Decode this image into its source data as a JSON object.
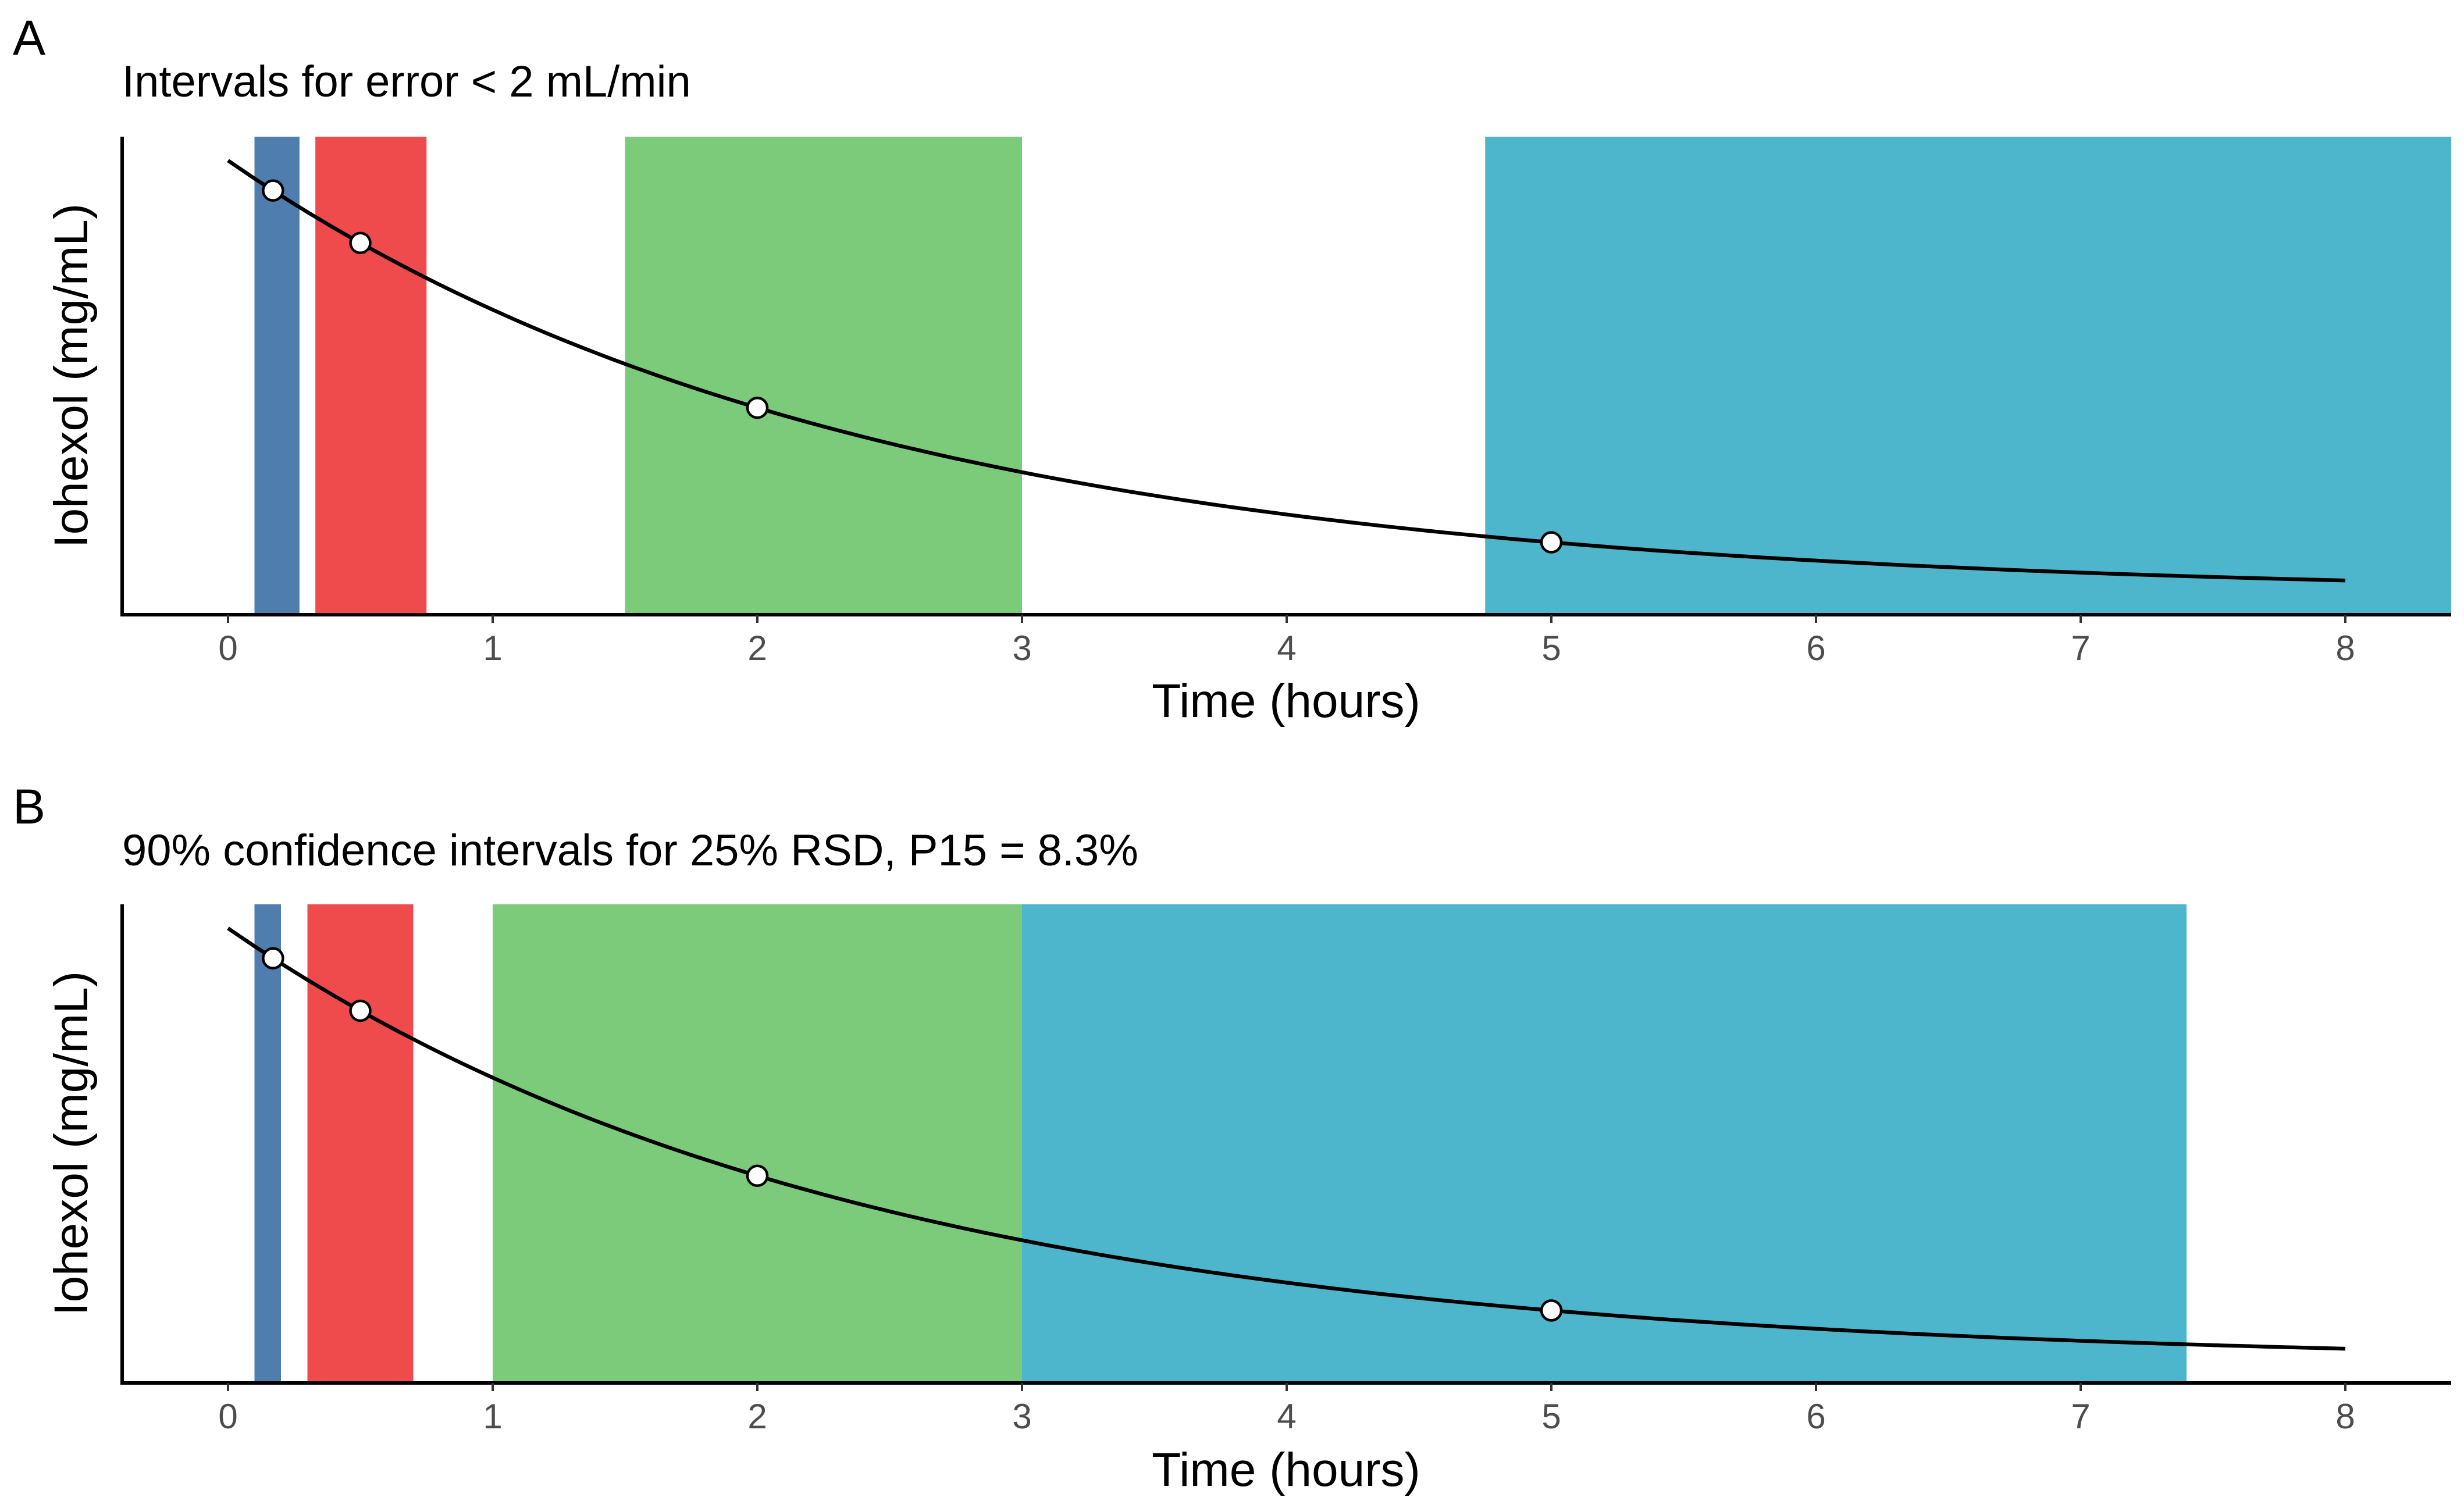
{
  "chart_data": [
    {
      "type": "area",
      "panel_label": "A",
      "title": "Intervals for error < 2 mL/min",
      "xlabel": "Time (hours)",
      "ylabel": "Iohexol (mg/mL)",
      "xlim": [
        -0.4,
        8.4
      ],
      "xticks": [
        0,
        1,
        2,
        3,
        4,
        5,
        6,
        7,
        8
      ],
      "intervals": [
        {
          "start": 0.1,
          "end": 0.27,
          "color": "#4E7DAE"
        },
        {
          "start": 0.33,
          "end": 0.75,
          "color": "#F04B4C"
        },
        {
          "start": 1.5,
          "end": 3.0,
          "color": "#7CCB7B"
        },
        {
          "start": 4.75,
          "end": 8.4,
          "color": "#4DB6CC"
        }
      ],
      "sample_times": [
        0.17,
        0.5,
        2,
        5
      ],
      "curve": {
        "x_start": 0,
        "x_end": 8,
        "line_color": "#000000",
        "point_fill": "#ffffff"
      },
      "grid": false
    },
    {
      "type": "area",
      "panel_label": "B",
      "title": "90% confidence intervals for 25% RSD, P15 = 8.3%",
      "xlabel": "Time (hours)",
      "ylabel": "Iohexol (mg/mL)",
      "xlim": [
        -0.4,
        8.4
      ],
      "xticks": [
        0,
        1,
        2,
        3,
        4,
        5,
        6,
        7,
        8
      ],
      "intervals": [
        {
          "start": 0.1,
          "end": 0.2,
          "color": "#4E7DAE"
        },
        {
          "start": 0.3,
          "end": 0.7,
          "color": "#F04B4C"
        },
        {
          "start": 1.0,
          "end": 3.0,
          "color": "#7CCB7B"
        },
        {
          "start": 3.0,
          "end": 7.4,
          "color": "#4DB6CC"
        }
      ],
      "sample_times": [
        0.17,
        0.5,
        2,
        5
      ],
      "curve": {
        "x_start": 0,
        "x_end": 8,
        "line_color": "#000000",
        "point_fill": "#ffffff"
      },
      "grid": false
    }
  ]
}
